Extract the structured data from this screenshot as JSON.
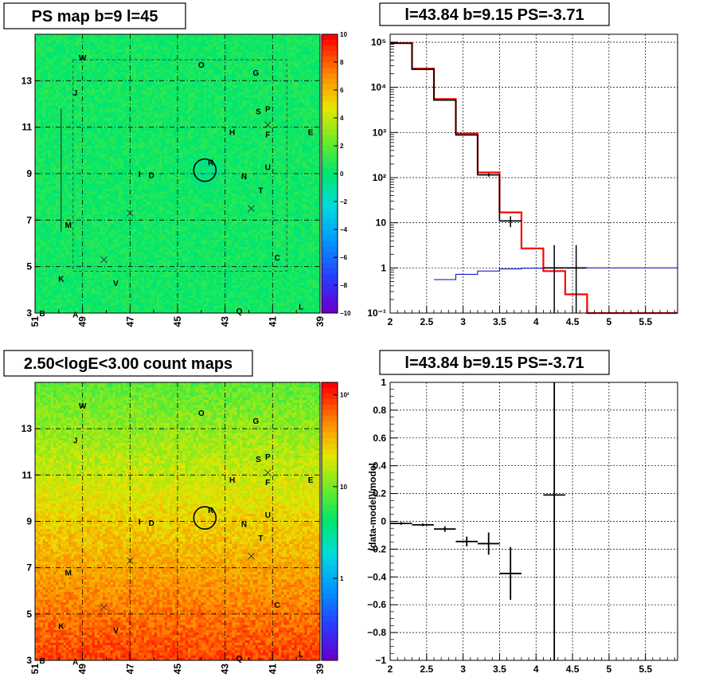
{
  "chart_data": [
    {
      "type": "heatmap",
      "title": "PS map b=9 l=45",
      "x_tick_labels": [
        "51",
        "49",
        "47",
        "45",
        "43",
        "41",
        "39"
      ],
      "y_tick_labels": [
        "3",
        "5",
        "7",
        "9",
        "11",
        "13"
      ],
      "xlim": [
        51,
        39
      ],
      "ylim": [
        3,
        15
      ],
      "colorbar_ticks": [
        "10",
        "8",
        "6",
        "4",
        "2",
        "0",
        "−2",
        "−4",
        "−6",
        "−8",
        "−10"
      ],
      "colorbar_range": [
        -10,
        10
      ],
      "dominant_value": 0.5,
      "sources": [
        "W",
        "O",
        "G",
        "J",
        "S",
        "P",
        "H",
        "F",
        "E",
        "R",
        "N",
        "U",
        "I",
        "D",
        "T",
        "M",
        "C",
        "K",
        "V",
        "Q",
        "B",
        "A",
        "L"
      ],
      "colors": {
        "low": "#6600cc",
        "mid": "#00e060",
        "high": "#ff0000"
      }
    },
    {
      "type": "line",
      "title": "l=43.84 b=9.15 PS=-3.71",
      "log_y": true,
      "x_tick_labels": [
        "2",
        "2.5",
        "3",
        "3.5",
        "4",
        "4.5",
        "5",
        "5.5"
      ],
      "y_tick_labels": [
        "10⁻¹",
        "1",
        "10",
        "10²",
        "10³",
        "10⁴",
        "10⁵"
      ],
      "xlim": [
        2.0,
        5.94
      ],
      "ylim": [
        0.1,
        150000
      ],
      "series": [
        {
          "color": "#ff0000",
          "bins": [
            2.0,
            2.3,
            2.6,
            2.9,
            3.2,
            3.5,
            3.8,
            4.1,
            4.4,
            4.7,
            5.94
          ],
          "values": [
            95000,
            26000,
            5500,
            950,
            130,
            17,
            2.7,
            0.85,
            0.26,
            0.1
          ]
        },
        {
          "color": "#000000",
          "bins": [
            2.0,
            2.3,
            2.6,
            2.9,
            3.2,
            3.5,
            3.8,
            4.1,
            4.4,
            4.7,
            5.94
          ],
          "values": [
            95000,
            25000,
            5200,
            880,
            115,
            11,
            null,
            1.0,
            1.0,
            null
          ]
        },
        {
          "color": "#0000cc",
          "bins": [
            2.6,
            2.9,
            3.2,
            3.5,
            3.8,
            4.1,
            4.4,
            4.7,
            5.94
          ],
          "values": [
            0.55,
            0.72,
            0.85,
            0.95,
            0.98,
            1.0,
            1.0,
            1.0
          ]
        }
      ],
      "error_bars": [
        {
          "x": 3.35,
          "y": 115,
          "ylo": 105,
          "yhi": 125
        },
        {
          "x": 3.65,
          "y": 11,
          "ylo": 8,
          "yhi": 14
        },
        {
          "x": 4.25,
          "y": 1.0,
          "ylo": 0.1,
          "yhi": 3.2
        },
        {
          "x": 4.55,
          "y": 1.0,
          "ylo": 0.1,
          "yhi": 3.2
        }
      ]
    },
    {
      "type": "heatmap",
      "title": "2.50<logE<3.00 count maps",
      "x_tick_labels": [
        "51",
        "49",
        "47",
        "45",
        "43",
        "41",
        "39"
      ],
      "y_tick_labels": [
        "3",
        "5",
        "7",
        "9",
        "11",
        "13"
      ],
      "xlim": [
        51,
        39
      ],
      "ylim": [
        3,
        15
      ],
      "colorbar_ticks": [
        "10²",
        "10",
        "1"
      ],
      "log_color": true,
      "sources": [
        "W",
        "O",
        "G",
        "J",
        "S",
        "P",
        "H",
        "F",
        "E",
        "R",
        "N",
        "U",
        "I",
        "D",
        "T",
        "M",
        "C",
        "K",
        "V",
        "Q",
        "B",
        "A",
        "L"
      ],
      "colors": {
        "low": "#6600cc",
        "mid": "#00e060",
        "high": "#ff0000"
      }
    },
    {
      "type": "scatter",
      "title": "l=43.84 b=9.15 PS=-3.71",
      "ylabel": "(data-model)/model",
      "x_tick_labels": [
        "2",
        "2.5",
        "3",
        "3.5",
        "4",
        "4.5",
        "5",
        "5.5"
      ],
      "y_tick_labels": [
        "1",
        "0.8",
        "0.6",
        "0.4",
        "0.2",
        "0",
        "−0.2",
        "−0.4",
        "−0.6",
        "−0.8",
        "−1"
      ],
      "xlim": [
        2.0,
        5.94
      ],
      "ylim": [
        -1,
        1
      ],
      "points": [
        {
          "x": 2.15,
          "y": -0.015,
          "xerr": 0.15,
          "yerr": 0.01
        },
        {
          "x": 2.45,
          "y": -0.025,
          "xerr": 0.15,
          "yerr": 0.01
        },
        {
          "x": 2.75,
          "y": -0.055,
          "xerr": 0.15,
          "yerr": 0.02
        },
        {
          "x": 3.05,
          "y": -0.145,
          "xerr": 0.15,
          "yerr": 0.035
        },
        {
          "x": 3.35,
          "y": -0.16,
          "xerr": 0.15,
          "yerr": 0.08
        },
        {
          "x": 3.65,
          "y": -0.375,
          "xerr": 0.15,
          "yerr": 0.19
        },
        {
          "x": 4.25,
          "y": 0.19,
          "xerr": 0.15,
          "yerr": 1.6
        }
      ]
    }
  ]
}
